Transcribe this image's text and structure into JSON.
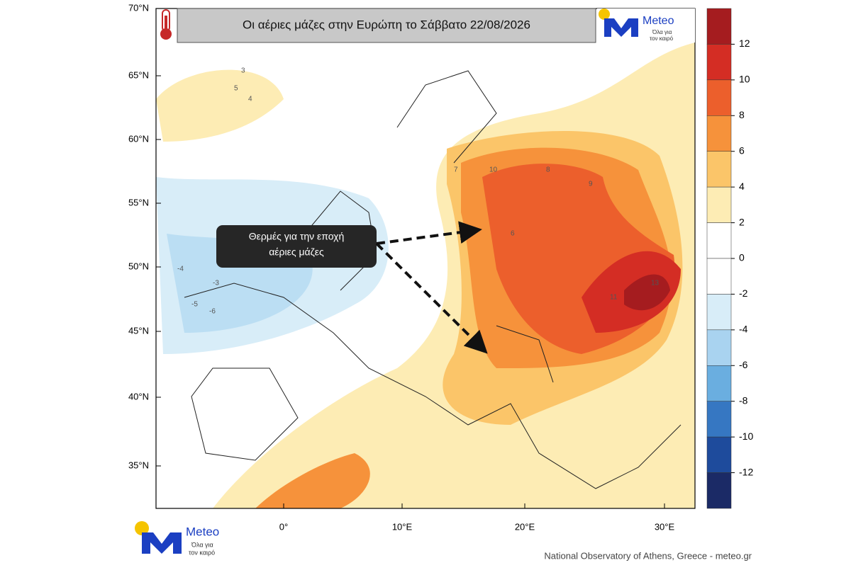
{
  "header": {
    "title": "Οι αέριες μάζες στην Ευρώπη το Σάββατο 22/08/2026"
  },
  "logo": {
    "name": "Meteo",
    "tagline_1": "Όλα για",
    "tagline_2": "τον καιρό"
  },
  "map": {
    "lat_labels": [
      "70°N",
      "65°N",
      "60°N",
      "55°N",
      "50°N",
      "45°N",
      "40°N",
      "35°N"
    ],
    "lon_labels": [
      "0°",
      "10°E",
      "20°E",
      "30°E"
    ],
    "contour_labels": [
      "-3",
      "-4",
      "-5",
      "-6",
      "3",
      "4",
      "5",
      "6",
      "7",
      "8",
      "9",
      "10",
      "11",
      "13"
    ]
  },
  "annotation": {
    "line_1": "Θερμές για την εποχή",
    "line_2": "αέριες μάζες"
  },
  "colorbar": {
    "levels": [
      12,
      10,
      8,
      6,
      4,
      2,
      0,
      -2,
      -4,
      -6,
      -8,
      -10,
      -12
    ],
    "colors": [
      "#a51c1f",
      "#d42d24",
      "#ec5f2c",
      "#f6923b",
      "#fbc569",
      "#fdecb4",
      "#ffffff",
      "#ffffff",
      "#d8edf8",
      "#a9d3f0",
      "#6aaee0",
      "#3677c2",
      "#1e4b9c",
      "#1b2a66"
    ]
  },
  "footer": {
    "credit": "National Observatory of Athens, Greece - meteo.gr"
  }
}
